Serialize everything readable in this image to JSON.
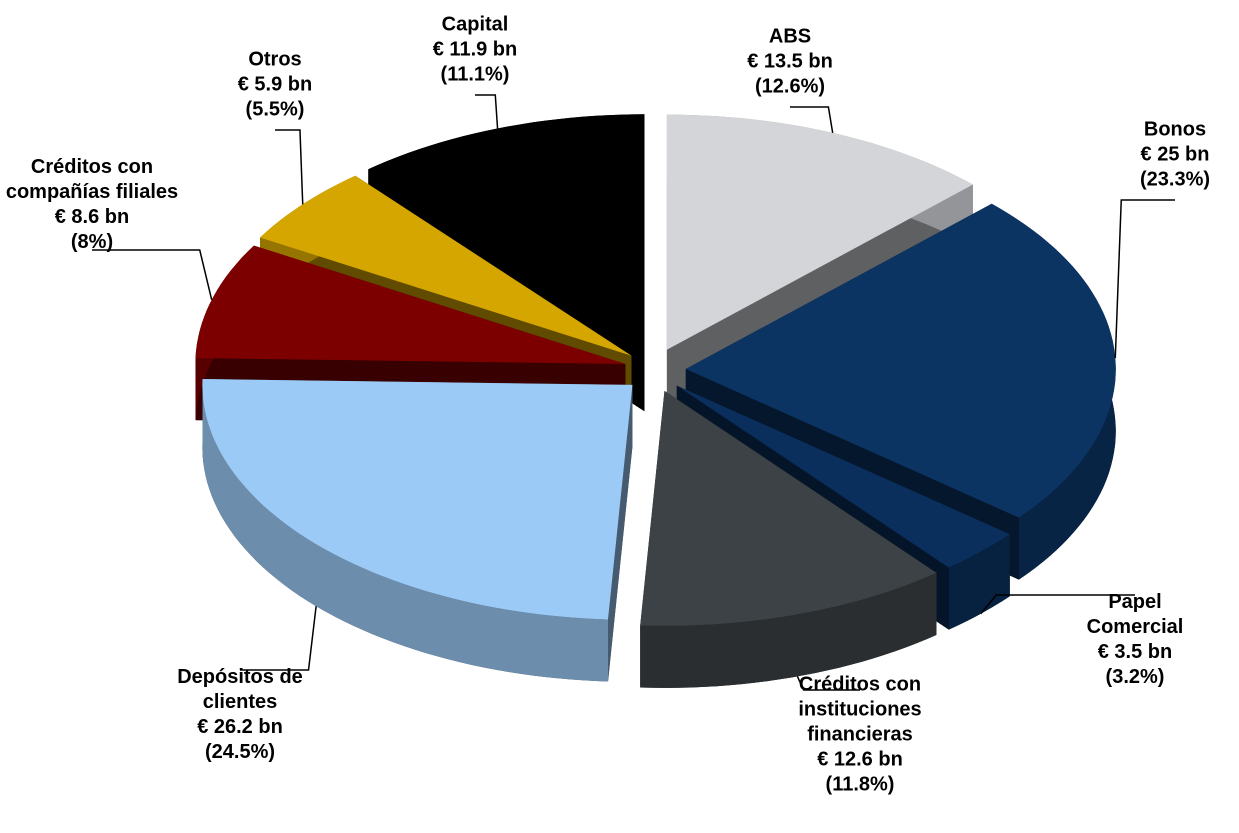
{
  "chart_data": {
    "type": "pie",
    "categories": [
      "ABS",
      "Bonos",
      "Papel Comercial",
      "Créditos con instituciones financieras",
      "Depósitos de clientes",
      "Créditos con compañías filiales",
      "Otros",
      "Capital"
    ],
    "values": [
      12.6,
      23.3,
      3.2,
      11.8,
      24.5,
      8,
      5.5,
      11.1
    ],
    "value_labels": [
      "(12.6%)",
      "(23.3%)",
      "(3.2%)",
      "(11.8%)",
      "(24.5%)",
      "(8%)",
      "(5.5%)",
      "(11.1%)"
    ],
    "amount_labels": [
      "€ 13.5 bn",
      "€ 25 bn",
      "€ 3.5 bn",
      "€ 12.6 bn",
      "€ 26.2 bn",
      "€ 8.6 bn",
      "€ 5.9 bn",
      "€ 11.9 bn"
    ],
    "colors": [
      "#d3d5d9",
      "#0c3463",
      "#0a2f5c",
      "#3c4245",
      "#9ccaf6",
      "#7d0000",
      "#d6a600",
      "#000000"
    ]
  }
}
